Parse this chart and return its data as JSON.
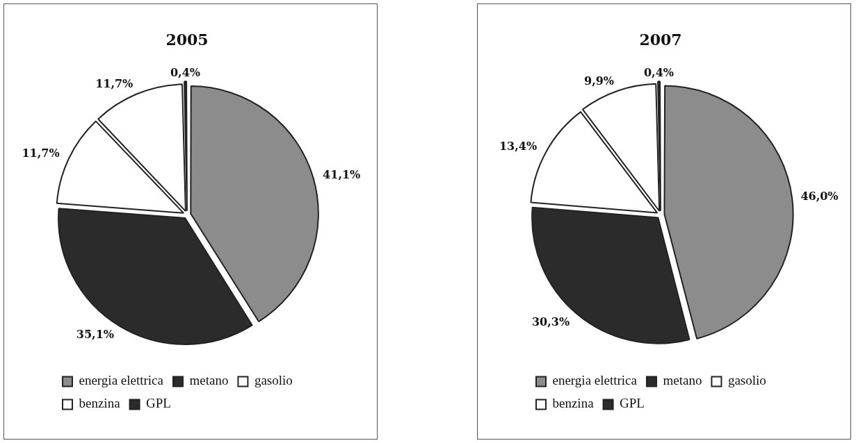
{
  "chart_data": [
    {
      "type": "pie",
      "title": "2005",
      "categories": [
        "energia elettrica",
        "metano",
        "gasolio",
        "benzina",
        "GPL"
      ],
      "values": [
        41.1,
        35.1,
        11.7,
        11.7,
        0.4
      ],
      "colors": [
        "#8c8c8c",
        "#2b2b2b",
        "#ffffff",
        "#ffffff",
        "#2b2b2b"
      ],
      "value_labels": [
        "41,1%",
        "35,1%",
        "11,7%",
        "11,7%",
        "0,4%"
      ],
      "legend": "bottom"
    },
    {
      "type": "pie",
      "title": "2007",
      "categories": [
        "energia elettrica",
        "metano",
        "gasolio",
        "benzina",
        "GPL"
      ],
      "values": [
        46.0,
        30.3,
        13.4,
        9.9,
        0.4
      ],
      "colors": [
        "#8c8c8c",
        "#2b2b2b",
        "#ffffff",
        "#ffffff",
        "#2b2b2b"
      ],
      "value_labels": [
        "46,0%",
        "30,3%",
        "13,4%",
        "9,9%",
        "0,4%"
      ],
      "legend": "bottom"
    }
  ]
}
